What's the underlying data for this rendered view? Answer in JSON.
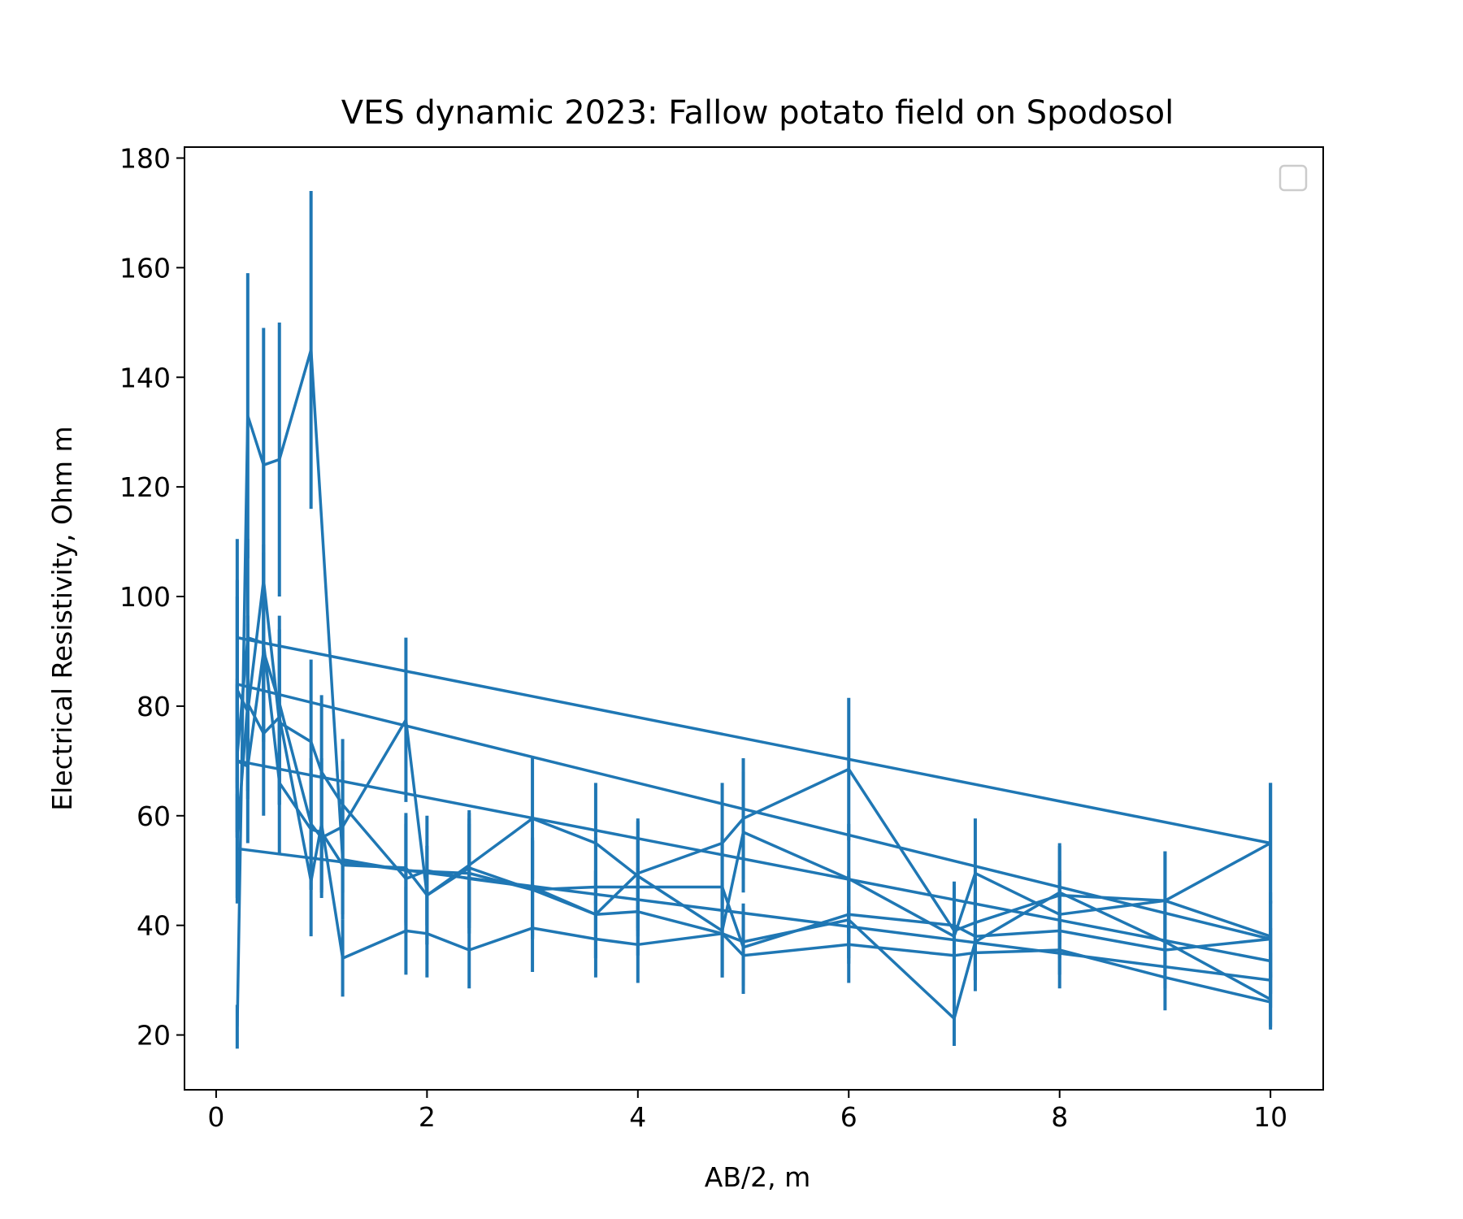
{
  "chart_data": {
    "type": "line",
    "title": "VES dynamic 2023: Fallow potato field on Spodosol",
    "xlabel": "AB/2, m",
    "ylabel": "Electrical Resistivity, Ohm m",
    "xlim": [
      -0.3,
      10.5
    ],
    "ylim": [
      10,
      182
    ],
    "xticks": [
      0,
      2,
      4,
      6,
      8,
      10
    ],
    "yticks": [
      20,
      40,
      60,
      80,
      100,
      120,
      140,
      160,
      180
    ],
    "grid": false,
    "legend": {
      "placement": "top-right",
      "entries": []
    },
    "line_color": "#1f77b4",
    "error_bars": true,
    "series": [
      {
        "points": [
          [
            0.2,
            92.5,
            18
          ],
          [
            10,
            55,
            11
          ]
        ]
      },
      {
        "points": [
          [
            0.2,
            84,
            19
          ],
          [
            10,
            37.5,
            7
          ]
        ]
      },
      {
        "points": [
          [
            0.2,
            70,
            14
          ],
          [
            10,
            33.5,
            6
          ]
        ]
      },
      {
        "points": [
          [
            0.2,
            54,
            10
          ],
          [
            10,
            30,
            5
          ]
        ]
      },
      {
        "points": [
          [
            0.2,
            21.5,
            4
          ],
          [
            0.3,
            133,
            26
          ],
          [
            0.45,
            124,
            25
          ],
          [
            0.6,
            125,
            25
          ],
          [
            0.9,
            145,
            29
          ],
          [
            1.2,
            52,
            10
          ],
          [
            1.8,
            50,
            10
          ],
          [
            2.4,
            49.5,
            10
          ],
          [
            3,
            46.5,
            9
          ],
          [
            3.6,
            42,
            8
          ],
          [
            4,
            49.5,
            10
          ],
          [
            4.8,
            55,
            11
          ],
          [
            5,
            59.5,
            11
          ],
          [
            6,
            68.5,
            13
          ],
          [
            7,
            39,
            8
          ],
          [
            7.2,
            40.5,
            8
          ],
          [
            8,
            45.5,
            9
          ],
          [
            9,
            44.5,
            9
          ],
          [
            10,
            55,
            11
          ]
        ]
      },
      {
        "points": [
          [
            0.2,
            71,
            14
          ],
          [
            0.3,
            92.5,
            18
          ],
          [
            0.45,
            91.5,
            18
          ],
          [
            0.6,
            66,
            13
          ],
          [
            0.9,
            57.5,
            11
          ],
          [
            1,
            57,
            11
          ],
          [
            1.2,
            51,
            10
          ],
          [
            1.8,
            50.5,
            10
          ],
          [
            2,
            45.5,
            9
          ],
          [
            2.4,
            51,
            10
          ],
          [
            3,
            59.5,
            11
          ],
          [
            3.6,
            55,
            11
          ],
          [
            4,
            49,
            10
          ],
          [
            4.8,
            39,
            8
          ],
          [
            5,
            57,
            11
          ],
          [
            6,
            48.5,
            10
          ],
          [
            7,
            38,
            8
          ],
          [
            7.2,
            49.5,
            10
          ],
          [
            8,
            42,
            8
          ],
          [
            9,
            44.5,
            9
          ],
          [
            10,
            38,
            8
          ]
        ]
      },
      {
        "points": [
          [
            0.2,
            83,
            17
          ],
          [
            0.3,
            79,
            16
          ],
          [
            0.45,
            103,
            21
          ],
          [
            0.6,
            77,
            15
          ],
          [
            0.9,
            73.5,
            15
          ],
          [
            1,
            68,
            14
          ],
          [
            1.2,
            62,
            12
          ],
          [
            1.8,
            48.5,
            10
          ],
          [
            2,
            50,
            10
          ],
          [
            2.4,
            48.5,
            10
          ],
          [
            3,
            47,
            9
          ],
          [
            3.6,
            42,
            8
          ],
          [
            4,
            42.5,
            8
          ],
          [
            4.8,
            38.5,
            8
          ],
          [
            5,
            37,
            7
          ],
          [
            6,
            41,
            8
          ],
          [
            7,
            23,
            5
          ],
          [
            7.2,
            37,
            7
          ],
          [
            8,
            46,
            9
          ],
          [
            9,
            37,
            7
          ],
          [
            10,
            26.5,
            5
          ]
        ]
      },
      {
        "points": [
          [
            0.2,
            56,
            11
          ],
          [
            0.3,
            80.5,
            16
          ],
          [
            0.45,
            75,
            15
          ],
          [
            0.6,
            78,
            16
          ],
          [
            0.9,
            48,
            10
          ],
          [
            1,
            58.5,
            12
          ],
          [
            1.2,
            34,
            7
          ],
          [
            1.8,
            39,
            8
          ],
          [
            2,
            38.5,
            8
          ],
          [
            2.4,
            35.5,
            7
          ],
          [
            3,
            39.5,
            8
          ],
          [
            3.6,
            37.5,
            7
          ],
          [
            4,
            36.5,
            7
          ],
          [
            4.8,
            38.5,
            8
          ],
          [
            5,
            34.5,
            7
          ],
          [
            6,
            36.5,
            7
          ],
          [
            7,
            34.5,
            7
          ],
          [
            7.2,
            35,
            7
          ],
          [
            8,
            35.5,
            7
          ],
          [
            9,
            30.5,
            6
          ],
          [
            10,
            26,
            5
          ]
        ]
      },
      {
        "points": [
          [
            0.2,
            70,
            14
          ],
          [
            0.3,
            69,
            14
          ],
          [
            0.45,
            90,
            18
          ],
          [
            0.6,
            80.5,
            16
          ],
          [
            0.9,
            58.5,
            12
          ],
          [
            1,
            56,
            11
          ],
          [
            1.2,
            58,
            12
          ],
          [
            1.8,
            77.5,
            15
          ],
          [
            2,
            45.5,
            9
          ],
          [
            2.4,
            50.5,
            10
          ],
          [
            3,
            46.5,
            9
          ],
          [
            3.6,
            47,
            9
          ],
          [
            4,
            47,
            9
          ],
          [
            4.8,
            47,
            9
          ],
          [
            5,
            36,
            7
          ],
          [
            6,
            42,
            8
          ],
          [
            7,
            40,
            8
          ],
          [
            7.2,
            38,
            8
          ],
          [
            8,
            39,
            8
          ],
          [
            9,
            35.5,
            7
          ],
          [
            10,
            37.5,
            7
          ]
        ]
      }
    ]
  }
}
